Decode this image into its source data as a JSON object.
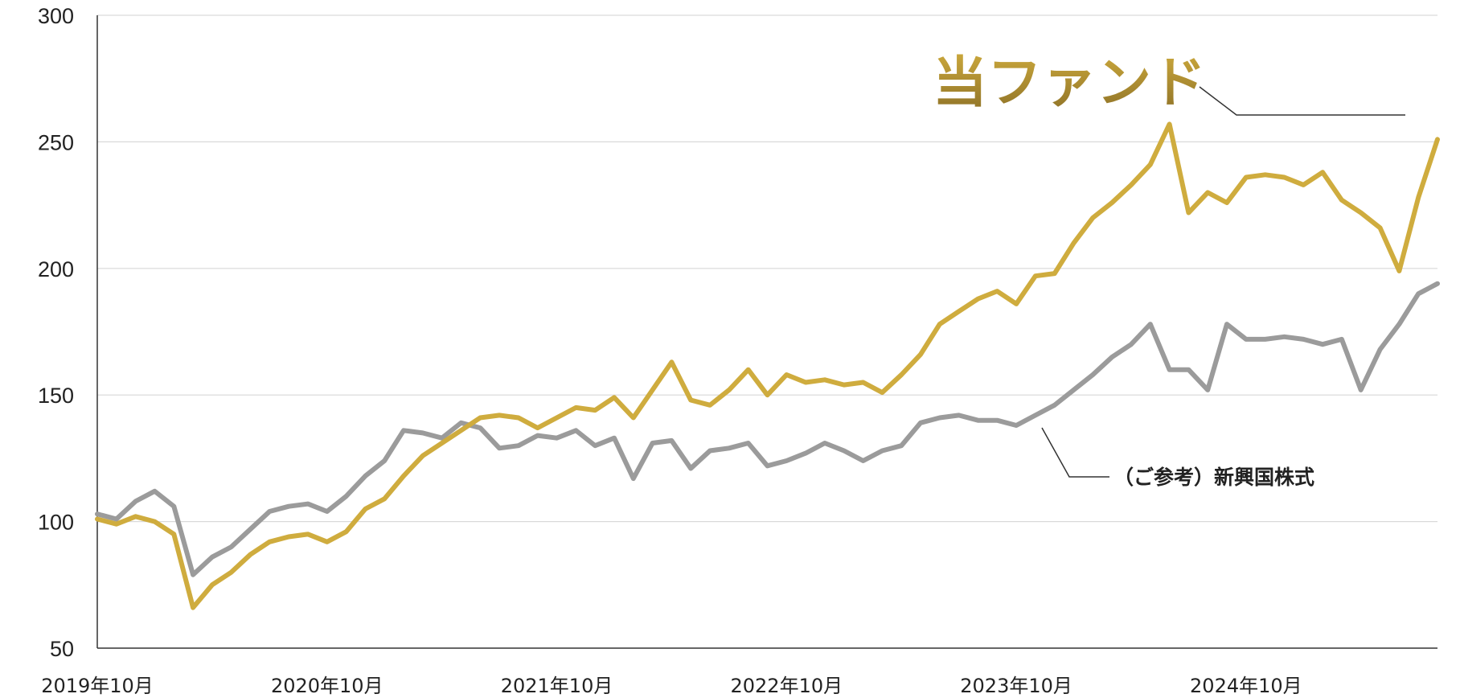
{
  "chart_data": {
    "type": "line",
    "title": "",
    "xlabel": "",
    "ylabel": "",
    "ylim": [
      50,
      300
    ],
    "yticks": [
      50,
      100,
      150,
      200,
      250,
      300
    ],
    "xticks": [
      "2019年10月",
      "2020年10月",
      "2021年10月",
      "2022年10月",
      "2023年10月",
      "2024年10月"
    ],
    "xlim": [
      "2019-10",
      "2025-08"
    ],
    "grid": "horizontal",
    "colors": {
      "fund": "#cfac3e",
      "fund_label_top": "#c9a63a",
      "fund_label_bottom": "#8f7328",
      "reference": "#9b9b9b",
      "grid": "#d9d9d9",
      "axis": "#333333"
    },
    "series": [
      {
        "name": "当ファンド",
        "key": "fund",
        "x": [
          "2019-10",
          "2019-11",
          "2019-12",
          "2020-01",
          "2020-02",
          "2020-03",
          "2020-04",
          "2020-05",
          "2020-06",
          "2020-07",
          "2020-08",
          "2020-09",
          "2020-10",
          "2020-11",
          "2020-12",
          "2021-01",
          "2021-02",
          "2021-03",
          "2021-04",
          "2021-05",
          "2021-06",
          "2021-07",
          "2021-08",
          "2021-09",
          "2021-10",
          "2021-11",
          "2021-12",
          "2022-01",
          "2022-02",
          "2022-03",
          "2022-04",
          "2022-05",
          "2022-06",
          "2022-07",
          "2022-08",
          "2022-09",
          "2022-10",
          "2022-11",
          "2022-12",
          "2023-01",
          "2023-02",
          "2023-03",
          "2023-04",
          "2023-05",
          "2023-06",
          "2023-07",
          "2023-08",
          "2023-09",
          "2023-10",
          "2023-11",
          "2023-12",
          "2024-01",
          "2024-02",
          "2024-03",
          "2024-04",
          "2024-05",
          "2024-06",
          "2024-07",
          "2024-08",
          "2024-09",
          "2024-10",
          "2024-11",
          "2024-12",
          "2025-01",
          "2025-02",
          "2025-03",
          "2025-04",
          "2025-05",
          "2025-06",
          "2025-07",
          "2025-08"
        ],
        "values": [
          101,
          99,
          102,
          100,
          95,
          66,
          75,
          80,
          87,
          92,
          94,
          95,
          92,
          96,
          105,
          109,
          118,
          126,
          131,
          136,
          141,
          142,
          141,
          137,
          141,
          145,
          144,
          149,
          141,
          152,
          163,
          148,
          146,
          152,
          160,
          150,
          158,
          155,
          156,
          154,
          155,
          151,
          158,
          166,
          178,
          183,
          188,
          191,
          186,
          197,
          198,
          210,
          220,
          226,
          233,
          241,
          257,
          222,
          230,
          226,
          236,
          237,
          236,
          233,
          238,
          227,
          222,
          216,
          199,
          228,
          251
        ]
      },
      {
        "name": "（ご参考）新興国株式",
        "key": "reference",
        "x": [
          "2019-10",
          "2019-11",
          "2019-12",
          "2020-01",
          "2020-02",
          "2020-03",
          "2020-04",
          "2020-05",
          "2020-06",
          "2020-07",
          "2020-08",
          "2020-09",
          "2020-10",
          "2020-11",
          "2020-12",
          "2021-01",
          "2021-02",
          "2021-03",
          "2021-04",
          "2021-05",
          "2021-06",
          "2021-07",
          "2021-08",
          "2021-09",
          "2021-10",
          "2021-11",
          "2021-12",
          "2022-01",
          "2022-02",
          "2022-03",
          "2022-04",
          "2022-05",
          "2022-06",
          "2022-07",
          "2022-08",
          "2022-09",
          "2022-10",
          "2022-11",
          "2022-12",
          "2023-01",
          "2023-02",
          "2023-03",
          "2023-04",
          "2023-05",
          "2023-06",
          "2023-07",
          "2023-08",
          "2023-09",
          "2023-10",
          "2023-11",
          "2023-12",
          "2024-01",
          "2024-02",
          "2024-03",
          "2024-04",
          "2024-05",
          "2024-06",
          "2024-07",
          "2024-08",
          "2024-09",
          "2024-10",
          "2024-11",
          "2024-12",
          "2025-01",
          "2025-02",
          "2025-03",
          "2025-04",
          "2025-05",
          "2025-06",
          "2025-07",
          "2025-08"
        ],
        "values": [
          103,
          101,
          108,
          112,
          106,
          79,
          86,
          90,
          97,
          104,
          106,
          107,
          104,
          110,
          118,
          124,
          136,
          135,
          133,
          139,
          137,
          129,
          130,
          134,
          133,
          136,
          130,
          133,
          117,
          131,
          132,
          121,
          128,
          129,
          131,
          122,
          124,
          127,
          131,
          128,
          124,
          128,
          130,
          139,
          141,
          142,
          140,
          140,
          138,
          142,
          146,
          152,
          158,
          165,
          170,
          178,
          160,
          160,
          152,
          178,
          172,
          172,
          173,
          172,
          170,
          172,
          152,
          168,
          178,
          190,
          194
        ]
      }
    ],
    "annotations": {
      "fund_label": "当ファンド",
      "reference_label": "（ご参考）新興国株式"
    }
  }
}
